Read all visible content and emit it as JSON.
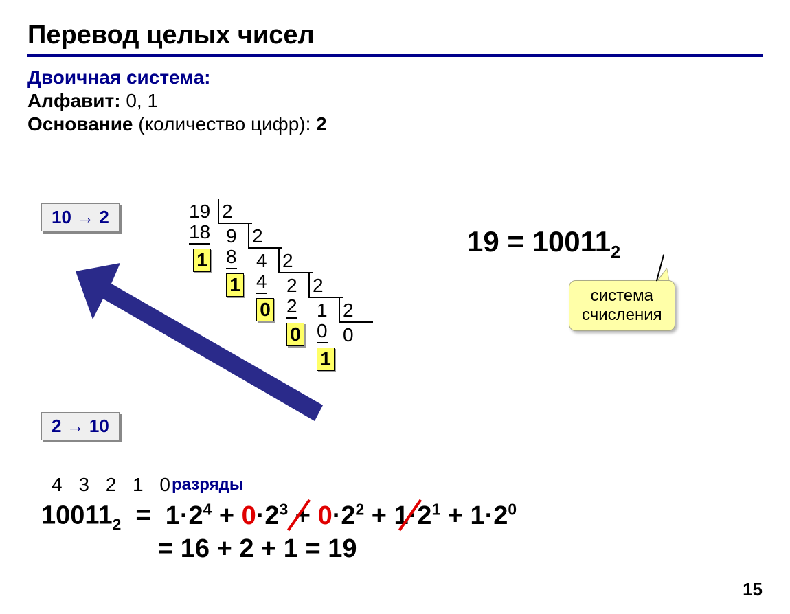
{
  "title": "Перевод целых чисел",
  "subtitle": "Двоичная система:",
  "alphabet_label": "Алфавит:",
  "alphabet_value": "0, 1",
  "base_label": "Основание",
  "base_paren": "(количество цифр):",
  "base_value": "2",
  "badge_10_2": "10 → 2",
  "badge_2_10": "2 → 10",
  "division": {
    "steps": [
      {
        "dividend": "19",
        "divisor": "2",
        "sub": "18",
        "quotient": "9",
        "remainder": "1"
      },
      {
        "dividend": "9",
        "divisor": "2",
        "sub": "8",
        "quotient": "4",
        "remainder": "1"
      },
      {
        "dividend": "4",
        "divisor": "2",
        "sub": "4",
        "quotient": "2",
        "remainder": "0"
      },
      {
        "dividend": "2",
        "divisor": "2",
        "sub": "2",
        "quotient": "1",
        "remainder": "0"
      },
      {
        "dividend": "1",
        "divisor": "2",
        "sub": "0",
        "quotient": "0",
        "remainder": "1"
      }
    ]
  },
  "result_left": "19 = 10011",
  "result_sub": "2",
  "callout_l1": "система",
  "callout_l2": "счисления",
  "ranks": "4 3 2 1 0",
  "ranks_label": "разряды",
  "expansion": {
    "binary": "10011",
    "binary_sub": "2",
    "terms": [
      {
        "coef": "1",
        "base": "2",
        "exp": "4",
        "zero": false
      },
      {
        "coef": "0",
        "base": "2",
        "exp": "3",
        "zero": true
      },
      {
        "coef": "0",
        "base": "2",
        "exp": "2",
        "zero": true
      },
      {
        "coef": "1",
        "base": "2",
        "exp": "1",
        "zero": false
      },
      {
        "coef": "1",
        "base": "2",
        "exp": "0",
        "zero": false
      }
    ],
    "sum": "= 16 + 2 + 1 = 19"
  },
  "page_number": "15",
  "colors": {
    "accent": "#00008b",
    "highlight_bg": "#ffff66",
    "callout_bg": "#ffffa8",
    "red": "#e00000",
    "arrow": "#2a2a8a"
  }
}
